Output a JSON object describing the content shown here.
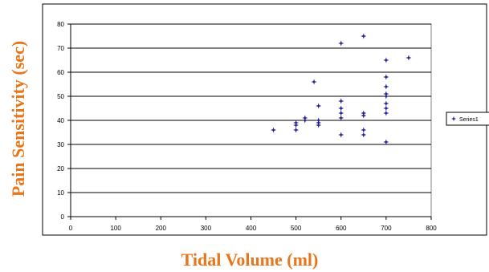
{
  "chart_data": {
    "type": "scatter",
    "xlabel": "Tidal Volume (ml)",
    "ylabel": "Pain Sensitivity (sec)",
    "xlim": [
      0,
      800
    ],
    "ylim": [
      0,
      80
    ],
    "x_ticks": [
      0,
      100,
      200,
      300,
      400,
      500,
      600,
      700,
      800
    ],
    "y_ticks": [
      0,
      10,
      20,
      30,
      40,
      50,
      60,
      70,
      80
    ],
    "grid": "horizontal",
    "legend": {
      "position": "right",
      "entries": [
        "Series1"
      ]
    },
    "series": [
      {
        "name": "Series1",
        "color": "#1f1f8f",
        "marker": "star",
        "points": [
          [
            450,
            36
          ],
          [
            500,
            36
          ],
          [
            500,
            38
          ],
          [
            500,
            39
          ],
          [
            520,
            40
          ],
          [
            520,
            41
          ],
          [
            540,
            56
          ],
          [
            550,
            38
          ],
          [
            550,
            39
          ],
          [
            550,
            40
          ],
          [
            550,
            46
          ],
          [
            600,
            34
          ],
          [
            600,
            41
          ],
          [
            600,
            43
          ],
          [
            600,
            45
          ],
          [
            600,
            48
          ],
          [
            600,
            72
          ],
          [
            650,
            34
          ],
          [
            650,
            36
          ],
          [
            650,
            42
          ],
          [
            650,
            43
          ],
          [
            650,
            75
          ],
          [
            700,
            31
          ],
          [
            700,
            43
          ],
          [
            700,
            45
          ],
          [
            700,
            47
          ],
          [
            700,
            50
          ],
          [
            700,
            51
          ],
          [
            700,
            54
          ],
          [
            700,
            58
          ],
          [
            700,
            65
          ],
          [
            750,
            66
          ]
        ]
      }
    ]
  }
}
